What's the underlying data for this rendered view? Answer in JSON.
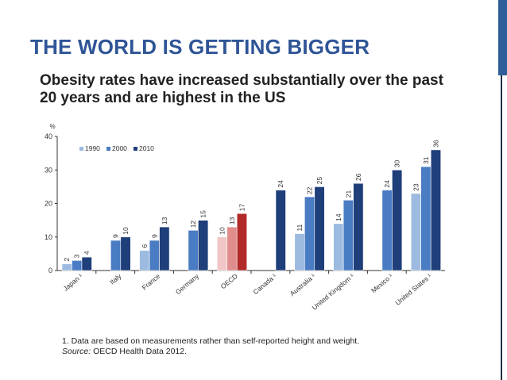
{
  "slide": {
    "title": "THE WORLD IS GETTING BIGGER"
  },
  "chart_data": {
    "type": "bar",
    "title": "Obesity rates have increased substantially over the past 20 years and are highest in the US",
    "ylabel": "%",
    "ylim": [
      0,
      40
    ],
    "yticks": [
      0,
      10,
      20,
      30,
      40
    ],
    "categories": [
      "Japan ¹",
      "Italy",
      "France",
      "Germany",
      "OECD",
      "Canada ¹",
      "Australia ¹",
      "United Kingdom ¹",
      "Mexico ¹",
      "United States ¹"
    ],
    "highlight_category": "OECD",
    "series": [
      {
        "name": "1990",
        "color": "#9dbbe0",
        "highlight_color": "#f2c6c6",
        "values": [
          2,
          null,
          6,
          null,
          10,
          null,
          11,
          14,
          null,
          23
        ]
      },
      {
        "name": "2000",
        "color": "#4a7cc4",
        "highlight_color": "#e08d8d",
        "values": [
          3,
          9,
          9,
          12,
          13,
          null,
          22,
          21,
          24,
          31
        ]
      },
      {
        "name": "2010",
        "color": "#1f3f7a",
        "highlight_color": "#b22a2a",
        "values": [
          4,
          10,
          13,
          15,
          17,
          24,
          25,
          26,
          30,
          36
        ]
      }
    ],
    "legend_position": "top-left"
  },
  "footnote": {
    "note": "1. Data are based on measurements rather than self-reported height and weight.",
    "source_label": "Source:",
    "source_text": " OECD Health Data 2012."
  }
}
